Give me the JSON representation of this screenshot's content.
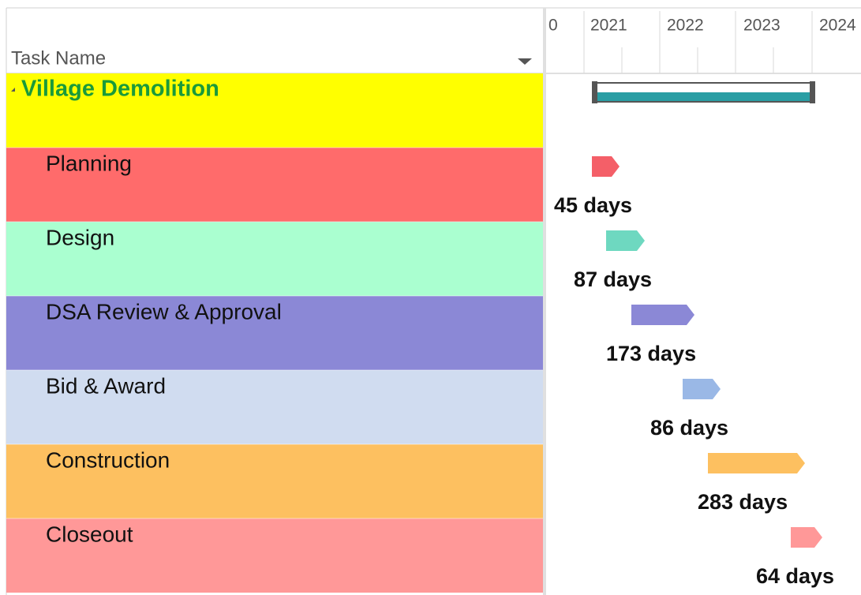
{
  "header": {
    "column": "Task Name"
  },
  "timescale": [
    "0",
    "2021",
    "2022",
    "2023",
    "2024"
  ],
  "summary": {
    "name": "Village Demolition",
    "color": "#ffff00"
  },
  "tasks": [
    {
      "name": "Planning",
      "duration": "45 days",
      "color": "#ff6b6b",
      "bar_color": "#f45f68"
    },
    {
      "name": "Design",
      "duration": "87 days",
      "color": "#aaffd0",
      "bar_color": "#6ed8c0"
    },
    {
      "name": "DSA Review & Approval",
      "duration": "173 days",
      "color": "#8b88d6",
      "bar_color": "#8b88d6"
    },
    {
      "name": "Bid & Award",
      "duration": "86 days",
      "color": "#d0dcf0",
      "bar_color": "#9ab8e6"
    },
    {
      "name": "Construction",
      "duration": "283 days",
      "color": "#fdc060",
      "bar_color": "#fdc060"
    },
    {
      "name": "Closeout",
      "duration": "64 days",
      "color": "#ff9898",
      "bar_color": "#ff9898"
    }
  ]
}
